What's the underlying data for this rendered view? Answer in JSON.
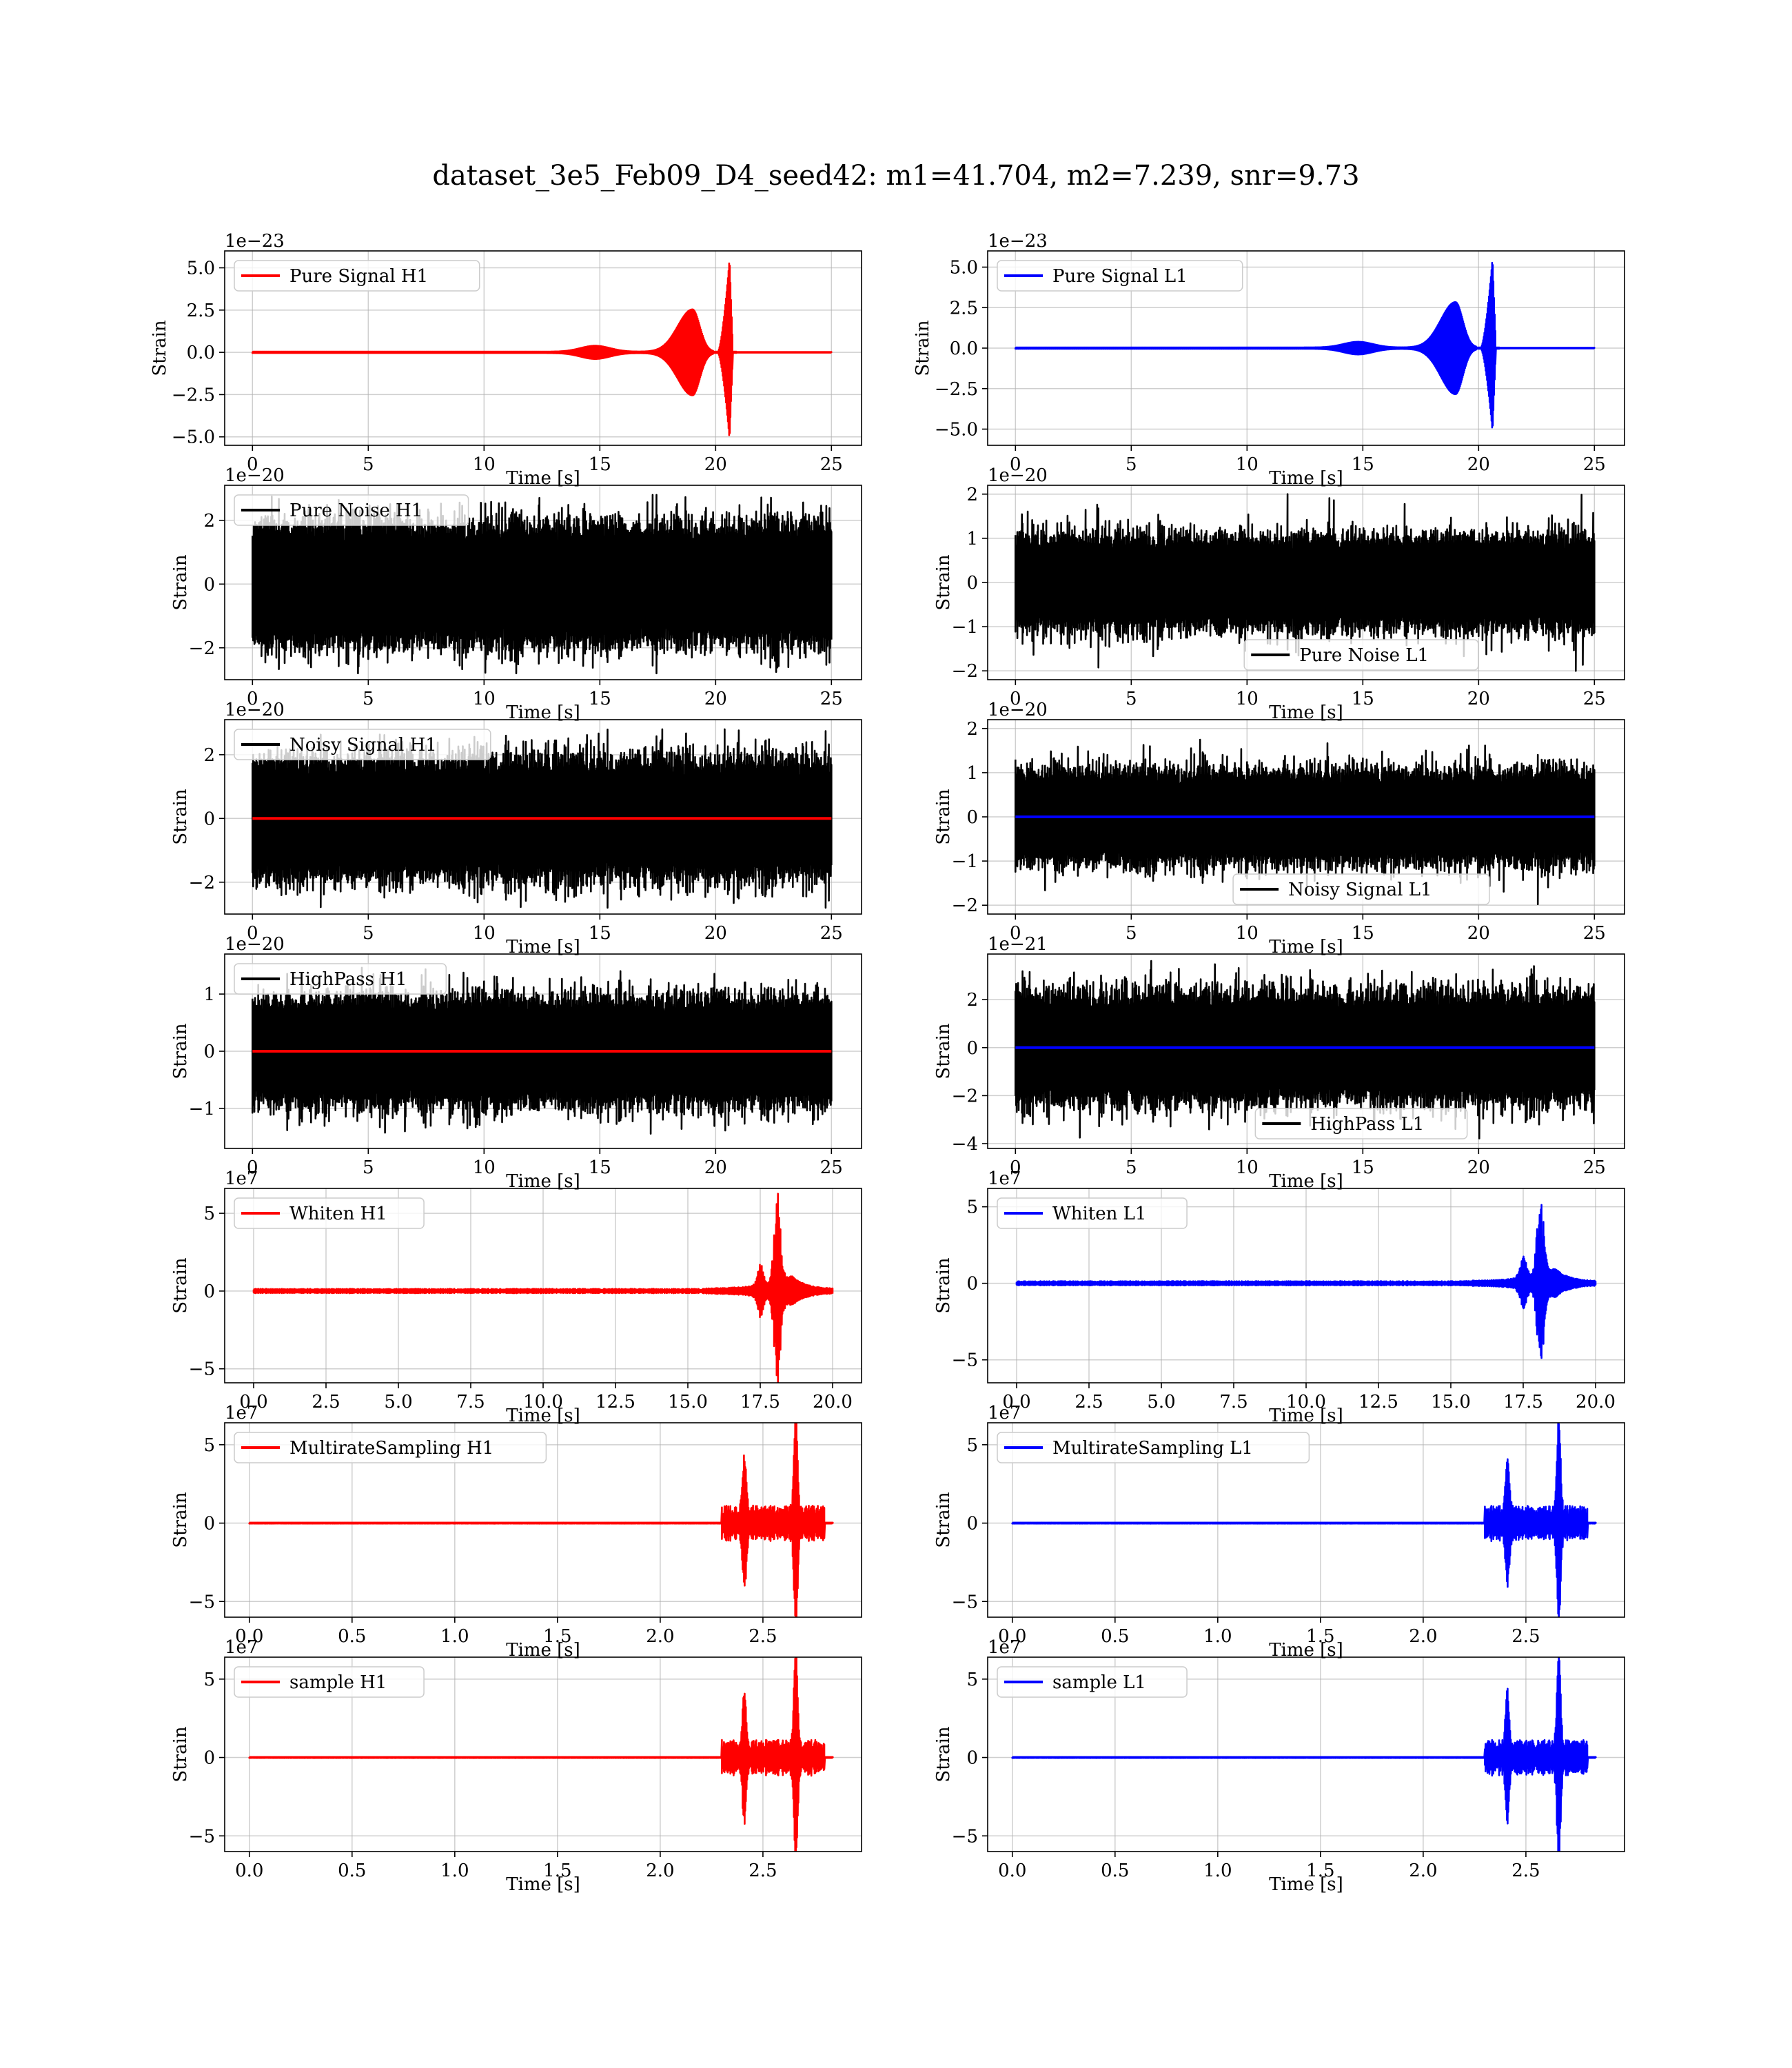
{
  "figure": {
    "title": "dataset_3e5_Feb09_D4_seed42: m1=41.704, m2=7.239, snr=9.73"
  },
  "colors": {
    "H1": "#ff0000",
    "L1": "#0000ff",
    "noise": "#000000"
  },
  "chart_data": [
    {
      "id": "pure-signal-h1",
      "type": "line",
      "ylabel": "Strain",
      "xlabel": "Time [s]",
      "offset": "1e−23",
      "xlim": [
        -1.2,
        26.3
      ],
      "ylim": [
        -5.5,
        6.0
      ],
      "xticks": [
        0,
        5,
        10,
        15,
        20,
        25
      ],
      "xtick_labels": [
        "0",
        "5",
        "10",
        "15",
        "20",
        "25"
      ],
      "yticks": [
        -5,
        -2.5,
        0,
        2.5,
        5
      ],
      "ytick_labels": [
        "−5.0",
        "−2.5",
        "0.0",
        "2.5",
        "5.0"
      ],
      "legend": "top-left",
      "legend_text": "Pure Signal H1",
      "series": [
        {
          "name": "Pure Signal H1",
          "color": "#ff0000",
          "kind": "chirp",
          "x_range": [
            0,
            25
          ],
          "events": [
            [
              14.8,
              0.35
            ],
            [
              19.0,
              2.5
            ],
            [
              20.6,
              5.5
            ]
          ]
        }
      ]
    },
    {
      "id": "pure-signal-l1",
      "type": "line",
      "ylabel": "Strain",
      "xlabel": "Time [s]",
      "offset": "1e−23",
      "xlim": [
        -1.2,
        26.3
      ],
      "ylim": [
        -6.0,
        6.0
      ],
      "xticks": [
        0,
        5,
        10,
        15,
        20,
        25
      ],
      "xtick_labels": [
        "0",
        "5",
        "10",
        "15",
        "20",
        "25"
      ],
      "yticks": [
        -5,
        -2.5,
        0,
        2.5,
        5
      ],
      "ytick_labels": [
        "−5.0",
        "−2.5",
        "0.0",
        "2.5",
        "5.0"
      ],
      "legend": "top-left",
      "legend_text": "Pure Signal L1",
      "series": [
        {
          "name": "Pure Signal L1",
          "color": "#0000ff",
          "kind": "chirp",
          "x_range": [
            0,
            25
          ],
          "events": [
            [
              14.8,
              0.35
            ],
            [
              19.0,
              2.8
            ],
            [
              20.6,
              5.5
            ]
          ]
        }
      ]
    },
    {
      "id": "pure-noise-h1",
      "type": "line",
      "ylabel": "Strain",
      "xlabel": "Time [s]",
      "offset": "1e−20",
      "xlim": [
        -1.2,
        26.3
      ],
      "ylim": [
        -3.0,
        3.1
      ],
      "xticks": [
        0,
        5,
        10,
        15,
        20,
        25
      ],
      "xtick_labels": [
        "0",
        "5",
        "10",
        "15",
        "20",
        "25"
      ],
      "yticks": [
        -2,
        0,
        2
      ],
      "ytick_labels": [
        "−2",
        "0",
        "2"
      ],
      "legend": "top-left",
      "legend_text": "Pure Noise H1",
      "series": [
        {
          "name": "Pure Noise H1",
          "color": "#000000",
          "kind": "noise",
          "x_range": [
            0,
            25
          ],
          "amp": 2.0,
          "peak": 2.8,
          "seed": 11
        }
      ]
    },
    {
      "id": "pure-noise-l1",
      "type": "line",
      "ylabel": "Strain",
      "xlabel": "Time [s]",
      "offset": "1e−20",
      "xlim": [
        -1.2,
        26.3
      ],
      "ylim": [
        -2.2,
        2.2
      ],
      "xticks": [
        0,
        5,
        10,
        15,
        20,
        25
      ],
      "xtick_labels": [
        "0",
        "5",
        "10",
        "15",
        "20",
        "25"
      ],
      "yticks": [
        -2,
        -1,
        0,
        1,
        2
      ],
      "ytick_labels": [
        "−2",
        "−1",
        "0",
        "1",
        "2"
      ],
      "legend": "bottom-center",
      "legend_text": "Pure Noise L1",
      "series": [
        {
          "name": "Pure Noise L1",
          "color": "#000000",
          "kind": "noise",
          "x_range": [
            0,
            25
          ],
          "amp": 1.1,
          "peak": 2.0,
          "seed": 23
        }
      ]
    },
    {
      "id": "noisy-signal-h1",
      "type": "line",
      "ylabel": "Strain",
      "xlabel": "Time [s]",
      "offset": "1e−20",
      "xlim": [
        -1.2,
        26.3
      ],
      "ylim": [
        -3.0,
        3.1
      ],
      "xticks": [
        0,
        5,
        10,
        15,
        20,
        25
      ],
      "xtick_labels": [
        "0",
        "5",
        "10",
        "15",
        "20",
        "25"
      ],
      "yticks": [
        -2,
        0,
        2
      ],
      "ytick_labels": [
        "−2",
        "0",
        "2"
      ],
      "legend": "top-left",
      "legend_text": "Noisy Signal H1",
      "series": [
        {
          "name": "Noisy Signal H1",
          "color": "#000000",
          "kind": "noise",
          "x_range": [
            0,
            25
          ],
          "amp": 2.0,
          "peak": 2.8,
          "seed": 37
        },
        {
          "name": "",
          "color": "#ff0000",
          "kind": "flat",
          "x_range": [
            0,
            25
          ]
        }
      ]
    },
    {
      "id": "noisy-signal-l1",
      "type": "line",
      "ylabel": "Strain",
      "xlabel": "Time [s]",
      "offset": "1e−20",
      "xlim": [
        -1.2,
        26.3
      ],
      "ylim": [
        -2.2,
        2.2
      ],
      "xticks": [
        0,
        5,
        10,
        15,
        20,
        25
      ],
      "xtick_labels": [
        "0",
        "5",
        "10",
        "15",
        "20",
        "25"
      ],
      "yticks": [
        -2,
        -1,
        0,
        1,
        2
      ],
      "ytick_labels": [
        "−2",
        "−1",
        "0",
        "1",
        "2"
      ],
      "legend": "bottom-center",
      "legend_text": "Noisy Signal L1",
      "series": [
        {
          "name": "Noisy Signal L1",
          "color": "#000000",
          "kind": "noise",
          "x_range": [
            0,
            25
          ],
          "amp": 1.1,
          "peak": 2.0,
          "seed": 41
        },
        {
          "name": "",
          "color": "#0000ff",
          "kind": "flat",
          "x_range": [
            0,
            25
          ]
        }
      ]
    },
    {
      "id": "highpass-h1",
      "type": "line",
      "ylabel": "Strain",
      "xlabel": "Time [s]",
      "offset": "1e−20",
      "xlim": [
        -1.2,
        26.3
      ],
      "ylim": [
        -1.7,
        1.7
      ],
      "xticks": [
        0,
        5,
        10,
        15,
        20,
        25
      ],
      "xtick_labels": [
        "0",
        "5",
        "10",
        "15",
        "20",
        "25"
      ],
      "yticks": [
        -1,
        0,
        1
      ],
      "ytick_labels": [
        "−1",
        "0",
        "1"
      ],
      "legend": "top-left",
      "legend_text": "HighPass H1",
      "series": [
        {
          "name": "HighPass H1",
          "color": "#000000",
          "kind": "noise",
          "x_range": [
            0,
            25
          ],
          "amp": 1.0,
          "peak": 1.5,
          "seed": 53
        },
        {
          "name": "",
          "color": "#ff0000",
          "kind": "flat",
          "x_range": [
            0,
            25
          ]
        }
      ]
    },
    {
      "id": "highpass-l1",
      "type": "line",
      "ylabel": "Strain",
      "xlabel": "Time [s]",
      "offset": "1e−21",
      "xlim": [
        -1.2,
        26.3
      ],
      "ylim": [
        -4.2,
        3.9
      ],
      "xticks": [
        0,
        5,
        10,
        15,
        20,
        25
      ],
      "xtick_labels": [
        "0",
        "5",
        "10",
        "15",
        "20",
        "25"
      ],
      "yticks": [
        -4,
        -2,
        0,
        2
      ],
      "ytick_labels": [
        "−4",
        "−2",
        "0",
        "2"
      ],
      "legend": "bottom-center",
      "legend_text": "HighPass L1",
      "series": [
        {
          "name": "HighPass L1",
          "color": "#000000",
          "kind": "noise",
          "x_range": [
            0,
            25
          ],
          "amp": 2.4,
          "peak": 3.8,
          "seed": 67
        },
        {
          "name": "",
          "color": "#0000ff",
          "kind": "flat",
          "x_range": [
            0,
            25
          ]
        }
      ]
    },
    {
      "id": "whiten-h1",
      "type": "line",
      "ylabel": "Strain",
      "xlabel": "Time [s]",
      "offset": "1e7",
      "xlim": [
        -1.0,
        21.0
      ],
      "ylim": [
        -5.9,
        6.6
      ],
      "xticks": [
        0,
        2.5,
        5,
        7.5,
        10,
        12.5,
        15,
        17.5,
        20
      ],
      "xtick_labels": [
        "0.0",
        "2.5",
        "5.0",
        "7.5",
        "10.0",
        "12.5",
        "15.0",
        "17.5",
        "20.0"
      ],
      "yticks": [
        -5,
        0,
        5
      ],
      "ytick_labels": [
        "−5",
        "0",
        "5"
      ],
      "legend": "top-left",
      "legend_text": "Whiten H1",
      "series": [
        {
          "name": "Whiten H1",
          "color": "#ff0000",
          "kind": "burst",
          "x_range": [
            0,
            20
          ],
          "base": 0.12,
          "bursts": [
            [
              18.1,
              6.0,
              0.45
            ],
            [
              17.5,
              1.5,
              0.4
            ]
          ],
          "seed": 71
        }
      ]
    },
    {
      "id": "whiten-l1",
      "type": "line",
      "ylabel": "Strain",
      "xlabel": "Time [s]",
      "offset": "1e7",
      "xlim": [
        -1.0,
        21.0
      ],
      "ylim": [
        -6.5,
        6.2
      ],
      "xticks": [
        0,
        2.5,
        5,
        7.5,
        10,
        12.5,
        15,
        17.5,
        20
      ],
      "xtick_labels": [
        "0.0",
        "2.5",
        "5.0",
        "7.5",
        "10.0",
        "12.5",
        "15.0",
        "17.5",
        "20.0"
      ],
      "yticks": [
        -5,
        0,
        5
      ],
      "ytick_labels": [
        "−5",
        "0",
        "5"
      ],
      "legend": "top-left",
      "legend_text": "Whiten L1",
      "series": [
        {
          "name": "Whiten L1",
          "color": "#0000ff",
          "kind": "burst",
          "x_range": [
            0,
            20
          ],
          "base": 0.12,
          "bursts": [
            [
              18.1,
              6.0,
              0.45
            ],
            [
              17.5,
              1.5,
              0.45
            ]
          ],
          "seed": 79
        }
      ]
    },
    {
      "id": "multirate-h1",
      "type": "line",
      "ylabel": "Strain",
      "xlabel": "Time [s]",
      "offset": "1e7",
      "xlim": [
        -0.12,
        2.98
      ],
      "ylim": [
        -6.0,
        6.4
      ],
      "xticks": [
        0,
        0.5,
        1,
        1.5,
        2,
        2.5
      ],
      "xtick_labels": [
        "0.0",
        "0.5",
        "1.0",
        "1.5",
        "2.0",
        "2.5"
      ],
      "yticks": [
        -5,
        0,
        5
      ],
      "ytick_labels": [
        "−5",
        "0",
        "5"
      ],
      "legend": "top-left",
      "legend_text": "MultirateSampling H1",
      "series": [
        {
          "name": "MultirateSampling H1",
          "color": "#ff0000",
          "kind": "multirate",
          "x_range": [
            0,
            2.84
          ],
          "seg": [
            2.3,
            2.8
          ],
          "base": 0.9,
          "spikes": [
            [
              2.41,
              3.4
            ],
            [
              2.66,
              6.1
            ]
          ],
          "seed": 83
        }
      ]
    },
    {
      "id": "multirate-l1",
      "type": "line",
      "ylabel": "Strain",
      "xlabel": "Time [s]",
      "offset": "1e7",
      "xlim": [
        -0.12,
        2.98
      ],
      "ylim": [
        -6.0,
        6.4
      ],
      "xticks": [
        0,
        0.5,
        1,
        1.5,
        2,
        2.5
      ],
      "xtick_labels": [
        "0.0",
        "0.5",
        "1.0",
        "1.5",
        "2.0",
        "2.5"
      ],
      "yticks": [
        -5,
        0,
        5
      ],
      "ytick_labels": [
        "−5",
        "0",
        "5"
      ],
      "legend": "top-left",
      "legend_text": "MultirateSampling L1",
      "series": [
        {
          "name": "MultirateSampling L1",
          "color": "#0000ff",
          "kind": "multirate",
          "x_range": [
            0,
            2.84
          ],
          "seg": [
            2.3,
            2.8
          ],
          "base": 0.9,
          "spikes": [
            [
              2.41,
              3.4
            ],
            [
              2.66,
              5.8
            ]
          ],
          "seed": 89
        }
      ]
    },
    {
      "id": "sample-h1",
      "type": "line",
      "ylabel": "Strain",
      "xlabel": "Time [s]",
      "offset": "1e7",
      "xlim": [
        -0.12,
        2.98
      ],
      "ylim": [
        -6.0,
        6.4
      ],
      "xticks": [
        0,
        0.5,
        1,
        1.5,
        2,
        2.5
      ],
      "xtick_labels": [
        "0.0",
        "0.5",
        "1.0",
        "1.5",
        "2.0",
        "2.5"
      ],
      "yticks": [
        -5,
        0,
        5
      ],
      "ytick_labels": [
        "−5",
        "0",
        "5"
      ],
      "legend": "top-left",
      "legend_text": "sample H1",
      "series": [
        {
          "name": "sample H1",
          "color": "#ff0000",
          "kind": "multirate",
          "x_range": [
            0,
            2.84
          ],
          "seg": [
            2.3,
            2.8
          ],
          "base": 0.9,
          "spikes": [
            [
              2.41,
              3.4
            ],
            [
              2.66,
              6.1
            ]
          ],
          "seed": 97
        }
      ]
    },
    {
      "id": "sample-l1",
      "type": "line",
      "ylabel": "Strain",
      "xlabel": "Time [s]",
      "offset": "1e7",
      "xlim": [
        -0.12,
        2.98
      ],
      "ylim": [
        -6.0,
        6.4
      ],
      "xticks": [
        0,
        0.5,
        1,
        1.5,
        2,
        2.5
      ],
      "xtick_labels": [
        "0.0",
        "0.5",
        "1.0",
        "1.5",
        "2.0",
        "2.5"
      ],
      "yticks": [
        -5,
        0,
        5
      ],
      "ytick_labels": [
        "−5",
        "0",
        "5"
      ],
      "legend": "top-left",
      "legend_text": "sample L1",
      "series": [
        {
          "name": "sample L1",
          "color": "#0000ff",
          "kind": "multirate",
          "x_range": [
            0,
            2.84
          ],
          "seg": [
            2.3,
            2.8
          ],
          "base": 0.9,
          "spikes": [
            [
              2.41,
              3.4
            ],
            [
              2.66,
              5.8
            ]
          ],
          "seed": 101
        }
      ]
    }
  ]
}
